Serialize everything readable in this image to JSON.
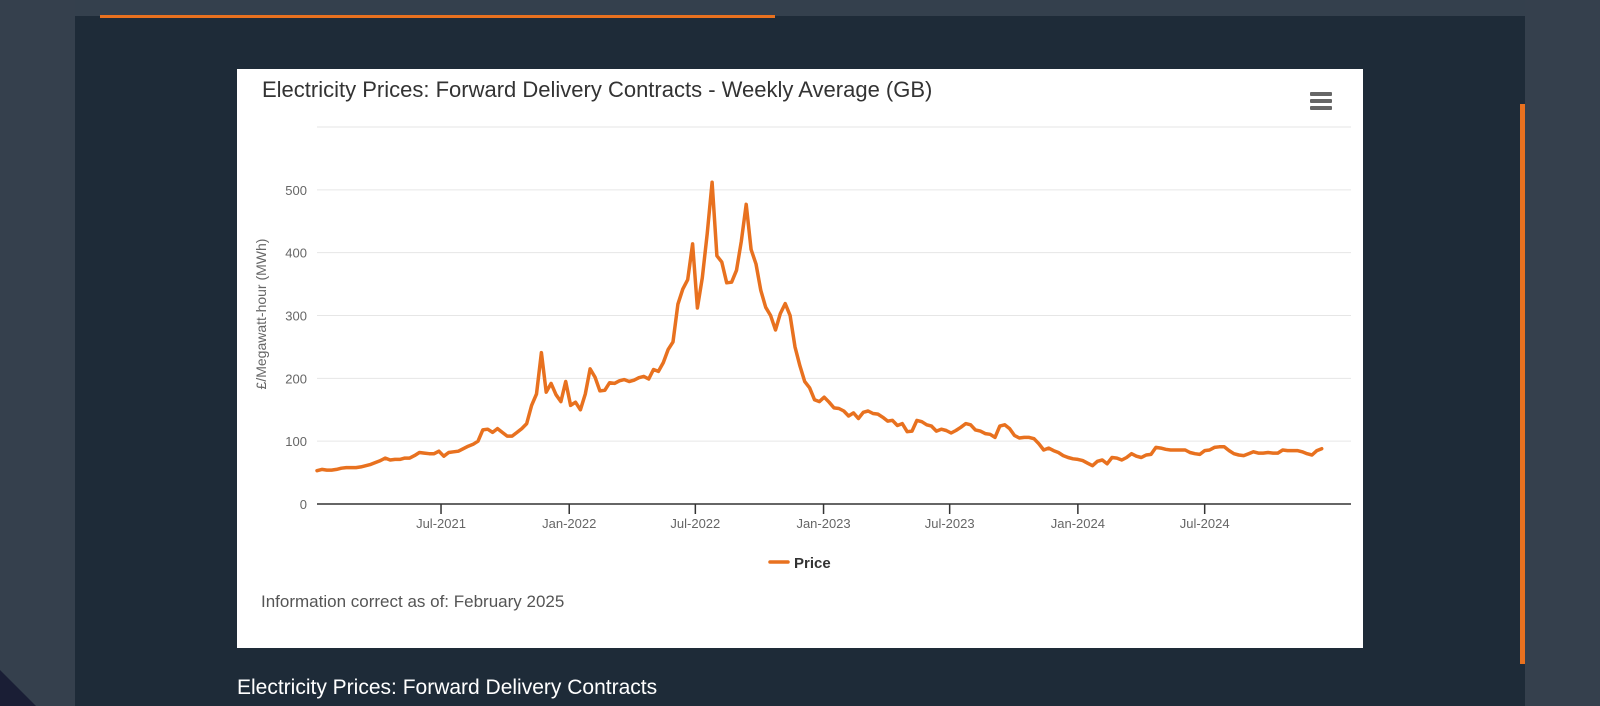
{
  "colors": {
    "accent": "#e8711f",
    "panel": "#1e2b38",
    "page": "#35404d"
  },
  "chart_card": {
    "menu_icon": "hamburger-menu-icon",
    "note": "Information correct as of: February 2025"
  },
  "section": {
    "heading": "Electricity Prices: Forward Delivery Contracts"
  },
  "chart_data": {
    "type": "line",
    "title": "Electricity Prices: Forward Delivery Contracts - Weekly Average (GB)",
    "xlabel": "",
    "ylabel": "£/Megawatt-hour (MWh)",
    "ylim": [
      0,
      600
    ],
    "yticks": [
      0,
      100,
      200,
      300,
      400,
      500
    ],
    "ytick_labels": [
      "0",
      "100",
      "200",
      "300",
      "400",
      "500"
    ],
    "x_start": "2021-01-04",
    "x_end": "2025-01-27",
    "xticks": [
      {
        "label": "Jul-2021",
        "date": "2021-07-01"
      },
      {
        "label": "Jan-2022",
        "date": "2022-01-01"
      },
      {
        "label": "Jul-2022",
        "date": "2022-07-01"
      },
      {
        "label": "Jan-2023",
        "date": "2023-01-01"
      },
      {
        "label": "Jul-2023",
        "date": "2023-07-01"
      },
      {
        "label": "Jan-2024",
        "date": "2024-01-01"
      },
      {
        "label": "Jul-2024",
        "date": "2024-07-01"
      }
    ],
    "legend": {
      "position": "bottom-center",
      "entries": [
        "Price"
      ]
    },
    "grid": true,
    "series": [
      {
        "name": "Price",
        "color": "#e8711f",
        "x_unit": "weeks since 2021-01-04",
        "points": [
          [
            0,
            53
          ],
          [
            1,
            55
          ],
          [
            2,
            54
          ],
          [
            3,
            54
          ],
          [
            4,
            55
          ],
          [
            5,
            57
          ],
          [
            6,
            58
          ],
          [
            7,
            58
          ],
          [
            8,
            58
          ],
          [
            9,
            59
          ],
          [
            10,
            61
          ],
          [
            11,
            63
          ],
          [
            12,
            66
          ],
          [
            13,
            69
          ],
          [
            14,
            73
          ],
          [
            15,
            70
          ],
          [
            16,
            71
          ],
          [
            17,
            71
          ],
          [
            18,
            73
          ],
          [
            19,
            73
          ],
          [
            20,
            77
          ],
          [
            21,
            82
          ],
          [
            22,
            81
          ],
          [
            23,
            80
          ],
          [
            24,
            80
          ],
          [
            25,
            84
          ],
          [
            26,
            76
          ],
          [
            27,
            82
          ],
          [
            28,
            83
          ],
          [
            29,
            84
          ],
          [
            30,
            88
          ],
          [
            31,
            92
          ],
          [
            32,
            95
          ],
          [
            33,
            100
          ],
          [
            34,
            118
          ],
          [
            35,
            119
          ],
          [
            36,
            114
          ],
          [
            37,
            120
          ],
          [
            38,
            114
          ],
          [
            39,
            108
          ],
          [
            40,
            108
          ],
          [
            41,
            114
          ],
          [
            42,
            120
          ],
          [
            43,
            128
          ],
          [
            44,
            157
          ],
          [
            45,
            175
          ],
          [
            46,
            241
          ],
          [
            47,
            178
          ],
          [
            48,
            192
          ],
          [
            49,
            174
          ],
          [
            50,
            163
          ],
          [
            51,
            195
          ],
          [
            52,
            157
          ],
          [
            53,
            162
          ],
          [
            54,
            150
          ],
          [
            55,
            175
          ],
          [
            56,
            215
          ],
          [
            57,
            202
          ],
          [
            58,
            180
          ],
          [
            59,
            181
          ],
          [
            60,
            193
          ],
          [
            61,
            192
          ],
          [
            62,
            196
          ],
          [
            63,
            198
          ],
          [
            64,
            195
          ],
          [
            65,
            197
          ],
          [
            66,
            201
          ],
          [
            67,
            203
          ],
          [
            68,
            199
          ],
          [
            69,
            214
          ],
          [
            70,
            211
          ],
          [
            71,
            225
          ],
          [
            72,
            246
          ],
          [
            73,
            258
          ],
          [
            74,
            318
          ],
          [
            75,
            342
          ],
          [
            76,
            357
          ],
          [
            77,
            414
          ],
          [
            78,
            312
          ],
          [
            79,
            360
          ],
          [
            80,
            430
          ],
          [
            81,
            512
          ],
          [
            82,
            395
          ],
          [
            83,
            385
          ],
          [
            84,
            352
          ],
          [
            85,
            353
          ],
          [
            86,
            372
          ],
          [
            87,
            418
          ],
          [
            88,
            477
          ],
          [
            89,
            405
          ],
          [
            90,
            382
          ],
          [
            91,
            340
          ],
          [
            92,
            313
          ],
          [
            93,
            300
          ],
          [
            94,
            277
          ],
          [
            95,
            303
          ],
          [
            96,
            319
          ],
          [
            97,
            300
          ],
          [
            98,
            250
          ],
          [
            99,
            220
          ],
          [
            100,
            195
          ],
          [
            101,
            185
          ],
          [
            102,
            166
          ],
          [
            103,
            163
          ],
          [
            104,
            170
          ],
          [
            105,
            162
          ],
          [
            106,
            153
          ],
          [
            107,
            152
          ],
          [
            108,
            148
          ],
          [
            109,
            140
          ],
          [
            110,
            145
          ],
          [
            111,
            136
          ],
          [
            112,
            146
          ],
          [
            113,
            148
          ],
          [
            114,
            144
          ],
          [
            115,
            143
          ],
          [
            116,
            138
          ],
          [
            117,
            132
          ],
          [
            118,
            133
          ],
          [
            119,
            125
          ],
          [
            120,
            128
          ],
          [
            121,
            115
          ],
          [
            122,
            116
          ],
          [
            123,
            133
          ],
          [
            124,
            131
          ],
          [
            125,
            126
          ],
          [
            126,
            124
          ],
          [
            127,
            116
          ],
          [
            128,
            119
          ],
          [
            129,
            117
          ],
          [
            130,
            113
          ],
          [
            131,
            117
          ],
          [
            132,
            122
          ],
          [
            133,
            128
          ],
          [
            134,
            126
          ],
          [
            135,
            118
          ],
          [
            136,
            116
          ],
          [
            137,
            112
          ],
          [
            138,
            111
          ],
          [
            139,
            106
          ],
          [
            140,
            124
          ],
          [
            141,
            126
          ],
          [
            142,
            120
          ],
          [
            143,
            109
          ],
          [
            144,
            105
          ],
          [
            145,
            106
          ],
          [
            146,
            106
          ],
          [
            147,
            104
          ],
          [
            148,
            96
          ],
          [
            149,
            86
          ],
          [
            150,
            89
          ],
          [
            151,
            85
          ],
          [
            152,
            82
          ],
          [
            153,
            77
          ],
          [
            154,
            74
          ],
          [
            155,
            72
          ],
          [
            156,
            71
          ],
          [
            157,
            69
          ],
          [
            158,
            65
          ],
          [
            159,
            61
          ],
          [
            160,
            68
          ],
          [
            161,
            70
          ],
          [
            162,
            64
          ],
          [
            163,
            74
          ],
          [
            164,
            73
          ],
          [
            165,
            70
          ],
          [
            166,
            74
          ],
          [
            167,
            80
          ],
          [
            168,
            76
          ],
          [
            169,
            74
          ],
          [
            170,
            78
          ],
          [
            171,
            79
          ],
          [
            172,
            90
          ],
          [
            173,
            89
          ],
          [
            174,
            87
          ],
          [
            175,
            86
          ],
          [
            176,
            86
          ],
          [
            177,
            86
          ],
          [
            178,
            86
          ],
          [
            179,
            82
          ],
          [
            180,
            80
          ],
          [
            181,
            79
          ],
          [
            182,
            85
          ],
          [
            183,
            86
          ],
          [
            184,
            90
          ],
          [
            185,
            91
          ],
          [
            186,
            91
          ],
          [
            187,
            85
          ],
          [
            188,
            80
          ],
          [
            189,
            78
          ],
          [
            190,
            77
          ],
          [
            191,
            80
          ],
          [
            192,
            83
          ],
          [
            193,
            81
          ],
          [
            194,
            81
          ],
          [
            195,
            82
          ],
          [
            196,
            81
          ],
          [
            197,
            81
          ],
          [
            198,
            86
          ],
          [
            199,
            85
          ],
          [
            200,
            85
          ],
          [
            201,
            85
          ],
          [
            202,
            83
          ],
          [
            203,
            80
          ],
          [
            204,
            78
          ],
          [
            205,
            85
          ],
          [
            206,
            88
          ]
        ]
      }
    ]
  }
}
